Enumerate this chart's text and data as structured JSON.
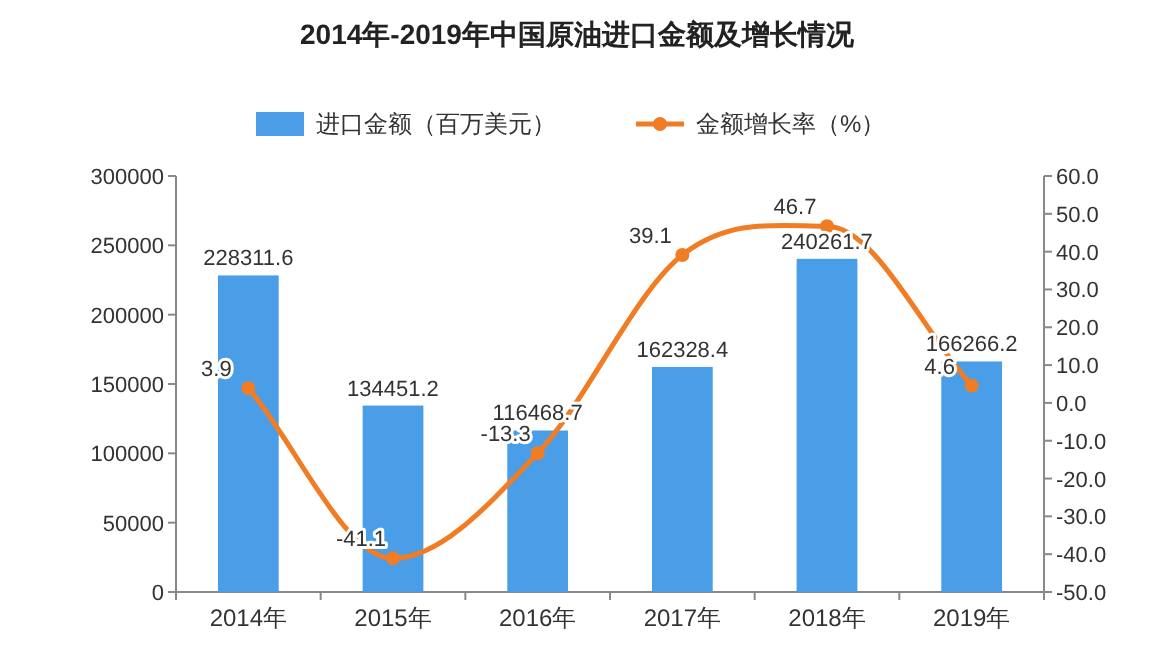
{
  "chart_data": {
    "type": "bar",
    "title": "2014年-2019年中国原油进口金额及增长情况",
    "categories": [
      "2014年",
      "2015年",
      "2016年",
      "2017年",
      "2018年",
      "2019年"
    ],
    "series": [
      {
        "name": "进口金额（百万美元）",
        "color": "#4a9ee8",
        "values": [
          228311.6,
          134451.2,
          116468.7,
          162328.4,
          240261.7,
          166266.2
        ]
      },
      {
        "name": "金额增长率（%）",
        "type": "line",
        "axis": "y2",
        "color": "#f07c24",
        "marker": "circle",
        "values": [
          3.9,
          -41.1,
          -13.3,
          39.1,
          46.7,
          4.6
        ]
      }
    ],
    "ylim": [
      0,
      300000
    ],
    "yticks": [
      0,
      50000,
      100000,
      150000,
      200000,
      250000,
      300000
    ],
    "y2lim": [
      -50,
      60
    ],
    "y2ticks": [
      {
        "value": -50,
        "label": "-50.0"
      },
      {
        "value": -40,
        "label": "-40.0"
      },
      {
        "value": -30,
        "label": "-30.0"
      },
      {
        "value": -20,
        "label": "-20.0"
      },
      {
        "value": -10,
        "label": "-10.0"
      },
      {
        "value": 0,
        "label": "0.0"
      },
      {
        "value": 10,
        "label": "10.0"
      },
      {
        "value": 20,
        "label": "20.0"
      },
      {
        "value": 30,
        "label": "30.0"
      },
      {
        "value": 40,
        "label": "40.0"
      },
      {
        "value": 50,
        "label": "50.0"
      },
      {
        "value": 60,
        "label": "60.0"
      }
    ],
    "data_labels": true,
    "legend": "top",
    "grid": false
  }
}
